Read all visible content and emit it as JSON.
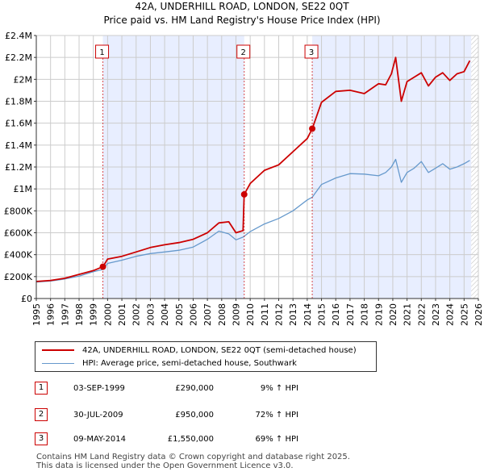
{
  "title_line1": "42A, UNDERHILL ROAD, LONDON, SE22 0QT",
  "title_line2": "Price paid vs. HM Land Registry's House Price Index (HPI)",
  "colors": {
    "property": "#cc0000",
    "hpi": "#6699cc",
    "shade": "#e8eeff",
    "grid": "#cccccc",
    "marker_border": "#cc0000"
  },
  "chart_data": {
    "type": "line",
    "title": "42A, UNDERHILL ROAD, LONDON, SE22 0QT — Price paid vs. HM Land Registry's House Price Index (HPI)",
    "xlabel": "",
    "ylabel": "",
    "xlim": [
      1995,
      2026
    ],
    "ylim": [
      0,
      2400000
    ],
    "x_ticks": [
      "1995",
      "1996",
      "1997",
      "1998",
      "1999",
      "2000",
      "2001",
      "2002",
      "2003",
      "2004",
      "2005",
      "2006",
      "2007",
      "2008",
      "2009",
      "2010",
      "2011",
      "2012",
      "2013",
      "2014",
      "2015",
      "2016",
      "2017",
      "2018",
      "2019",
      "2020",
      "2021",
      "2022",
      "2023",
      "2024",
      "2025",
      "2026"
    ],
    "y_ticks": [
      {
        "value": 0,
        "label": "£0"
      },
      {
        "value": 200000,
        "label": "£200K"
      },
      {
        "value": 400000,
        "label": "£400K"
      },
      {
        "value": 600000,
        "label": "£600K"
      },
      {
        "value": 800000,
        "label": "£800K"
      },
      {
        "value": 1000000,
        "label": "£1M"
      },
      {
        "value": 1200000,
        "label": "£1.2M"
      },
      {
        "value": 1400000,
        "label": "£1.4M"
      },
      {
        "value": 1600000,
        "label": "£1.6M"
      },
      {
        "value": 1800000,
        "label": "£1.8M"
      },
      {
        "value": 2000000,
        "label": "£2M"
      },
      {
        "value": 2200000,
        "label": "£2.2M"
      },
      {
        "value": 2400000,
        "label": "£2.4M"
      }
    ],
    "grid": true,
    "shaded_ranges": [
      [
        1999.67,
        2009.58
      ],
      [
        2014.35,
        2025.5
      ]
    ],
    "hatched_from": 2025.5,
    "series": [
      {
        "name": "42A, UNDERHILL ROAD, LONDON, SE22 0QT (semi-detached house)",
        "color": "#cc0000",
        "x": [
          1995,
          1996,
          1997,
          1998,
          1999,
          1999.67,
          2000,
          2001,
          2002,
          2003,
          2004,
          2005,
          2006,
          2007,
          2007.8,
          2008.5,
          2009,
          2009.5,
          2009.58,
          2010,
          2011,
          2012,
          2013,
          2014,
          2014.35,
          2015,
          2016,
          2017,
          2018,
          2019,
          2019.5,
          2019.9,
          2020.2,
          2020.6,
          2021,
          2021.5,
          2022,
          2022.5,
          2023,
          2023.5,
          2024,
          2024.5,
          2025,
          2025.4
        ],
        "y": [
          155000,
          165000,
          185000,
          220000,
          255000,
          290000,
          360000,
          385000,
          425000,
          465000,
          490000,
          510000,
          540000,
          600000,
          690000,
          700000,
          600000,
          620000,
          950000,
          1050000,
          1170000,
          1220000,
          1340000,
          1460000,
          1550000,
          1790000,
          1890000,
          1900000,
          1870000,
          1960000,
          1950000,
          2050000,
          2200000,
          1800000,
          1980000,
          2020000,
          2060000,
          1940000,
          2020000,
          2060000,
          1990000,
          2050000,
          2070000,
          2170000
        ]
      },
      {
        "name": "HPI: Average price, semi-detached house, Southwark",
        "color": "#6699cc",
        "x": [
          1995,
          1996,
          1997,
          1998,
          1999,
          1999.67,
          2000,
          2001,
          2002,
          2003,
          2004,
          2005,
          2006,
          2007,
          2007.8,
          2008.5,
          2009,
          2009.5,
          2010,
          2011,
          2012,
          2013,
          2014,
          2014.35,
          2015,
          2016,
          2017,
          2018,
          2019,
          2019.5,
          2019.9,
          2020.2,
          2020.6,
          2021,
          2021.5,
          2022,
          2022.5,
          2023,
          2023.5,
          2024,
          2024.5,
          2025,
          2025.4
        ],
        "y": [
          150000,
          160000,
          178000,
          205000,
          245000,
          265000,
          320000,
          350000,
          385000,
          410000,
          425000,
          440000,
          470000,
          540000,
          615000,
          590000,
          535000,
          560000,
          610000,
          680000,
          730000,
          800000,
          900000,
          925000,
          1040000,
          1100000,
          1140000,
          1135000,
          1120000,
          1150000,
          1200000,
          1270000,
          1060000,
          1150000,
          1190000,
          1250000,
          1150000,
          1190000,
          1230000,
          1180000,
          1200000,
          1230000,
          1260000
        ]
      }
    ],
    "transactions": [
      {
        "label": "1",
        "x": 1999.67,
        "y": 290000
      },
      {
        "label": "2",
        "x": 2009.58,
        "y": 950000
      },
      {
        "label": "3",
        "x": 2014.35,
        "y": 1550000
      }
    ]
  },
  "legend": {
    "property": "42A, UNDERHILL ROAD, LONDON, SE22 0QT (semi-detached house)",
    "hpi": "HPI: Average price, semi-detached house, Southwark"
  },
  "transactions": [
    {
      "num": "1",
      "date": "03-SEP-1999",
      "price": "£290,000",
      "hpi": "9% ↑ HPI"
    },
    {
      "num": "2",
      "date": "30-JUL-2009",
      "price": "£950,000",
      "hpi": "72% ↑ HPI"
    },
    {
      "num": "3",
      "date": "09-MAY-2014",
      "price": "£1,550,000",
      "hpi": "69% ↑ HPI"
    }
  ],
  "footer": {
    "line1": "Contains HM Land Registry data © Crown copyright and database right 2025.",
    "line2": "This data is licensed under the Open Government Licence v3.0."
  }
}
